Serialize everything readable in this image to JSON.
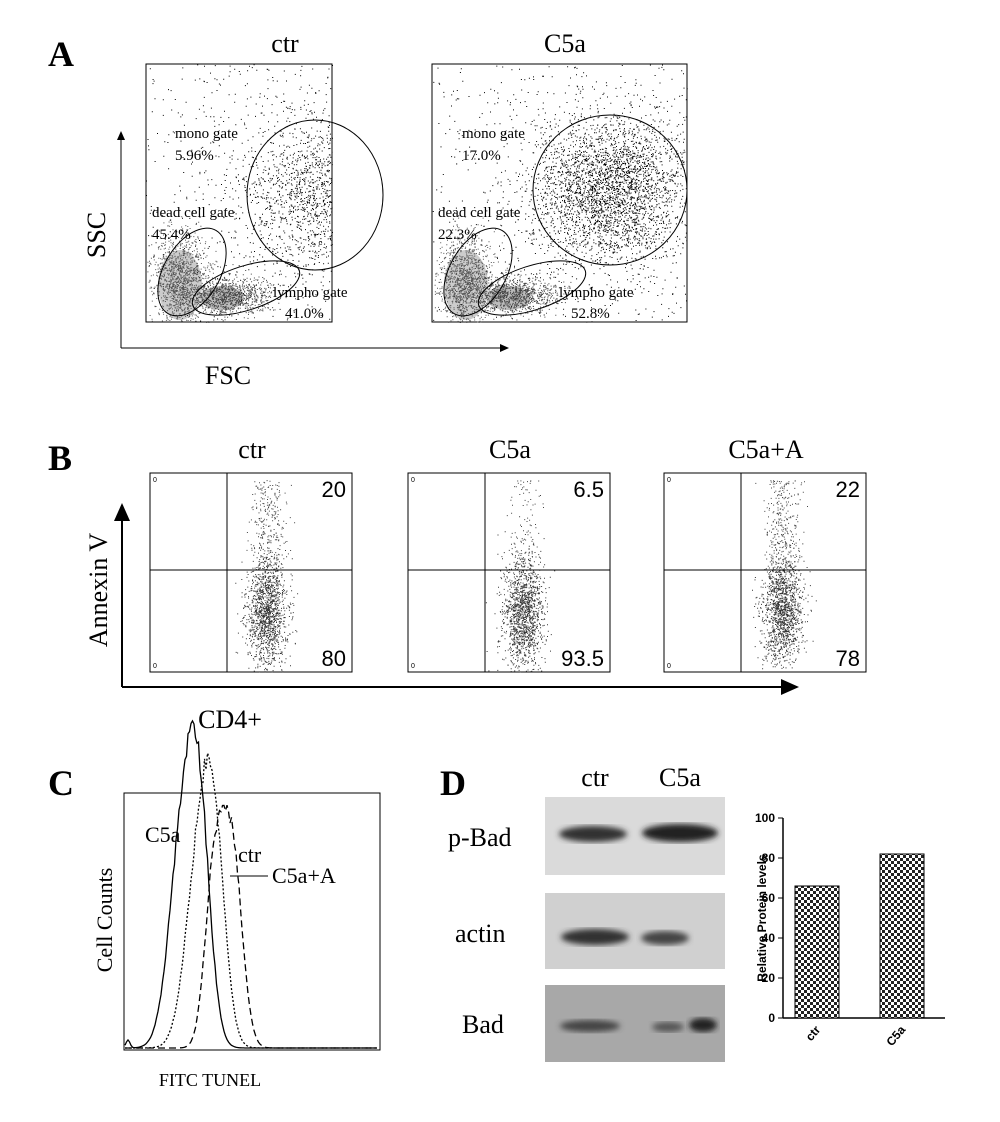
{
  "panel_a": {
    "label": "A",
    "y_axis": "SSC",
    "x_axis": "FSC",
    "gates": [
      "mono gate",
      "dead cell gate",
      "lympho gate"
    ],
    "plots": [
      {
        "title": "ctr",
        "percents": [
          "5.96%",
          "45.4%",
          "41.0%"
        ]
      },
      {
        "title": "C5a",
        "percents": [
          "17.0%",
          "22.3%",
          "52.8%"
        ]
      }
    ]
  },
  "panel_b": {
    "label": "B",
    "y_axis": "Annexin V",
    "x_axis": "CD4+",
    "corner": "0",
    "plots": [
      {
        "title": "ctr",
        "upper": "20",
        "lower": "80"
      },
      {
        "title": "C5a",
        "upper": "6.5",
        "lower": "93.5"
      },
      {
        "title": "C5a+A",
        "upper": "22",
        "lower": "78"
      }
    ]
  },
  "panel_c": {
    "label": "C",
    "y_axis": "Cell Counts",
    "x_axis": "FITC TUNEL",
    "curves": [
      "C5a",
      "ctr",
      "C5a+A"
    ]
  },
  "panel_d": {
    "label": "D",
    "lanes": [
      "ctr",
      "C5a"
    ],
    "blots": [
      "p-Bad",
      "actin",
      "Bad"
    ]
  },
  "chart_data": {
    "type": "bar",
    "y_label": "Relative Protein levels",
    "categories": [
      "ctr",
      "C5a"
    ],
    "values": [
      66,
      82
    ],
    "ylim": [
      0,
      100
    ],
    "yticks": [
      0,
      20,
      40,
      60,
      80,
      100
    ]
  }
}
